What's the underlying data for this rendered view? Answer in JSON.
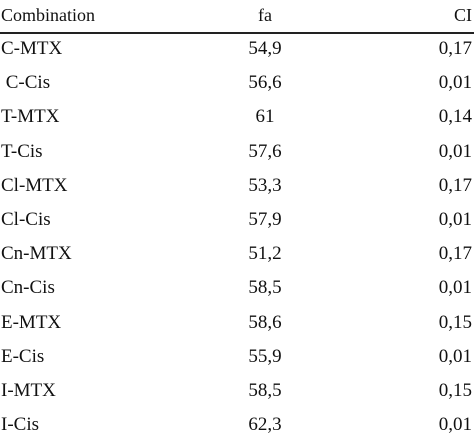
{
  "table": {
    "header": [
      "Combination",
      "fa",
      "CI"
    ],
    "rows": [
      [
        "C-MTX",
        "54,9",
        "0,17"
      ],
      [
        " C-Cis",
        "56,6",
        "0,01"
      ],
      [
        "T-MTX",
        "61",
        "0,14"
      ],
      [
        "T-Cis",
        "57,6",
        "0,01"
      ],
      [
        "Cl-MTX",
        "53,3",
        "0,17"
      ],
      [
        "Cl-Cis",
        "57,9",
        "0,01"
      ],
      [
        "Cn-MTX",
        "51,2",
        "0,17"
      ],
      [
        "Cn-Cis",
        "58,5",
        "0,01"
      ],
      [
        "E-MTX",
        "58,6",
        "0,15"
      ],
      [
        "E-Cis",
        "55,9",
        "0,01"
      ],
      [
        "I-MTX",
        "58,5",
        "0,15"
      ],
      [
        "I-Cis",
        "62,3",
        "0,01"
      ]
    ]
  }
}
